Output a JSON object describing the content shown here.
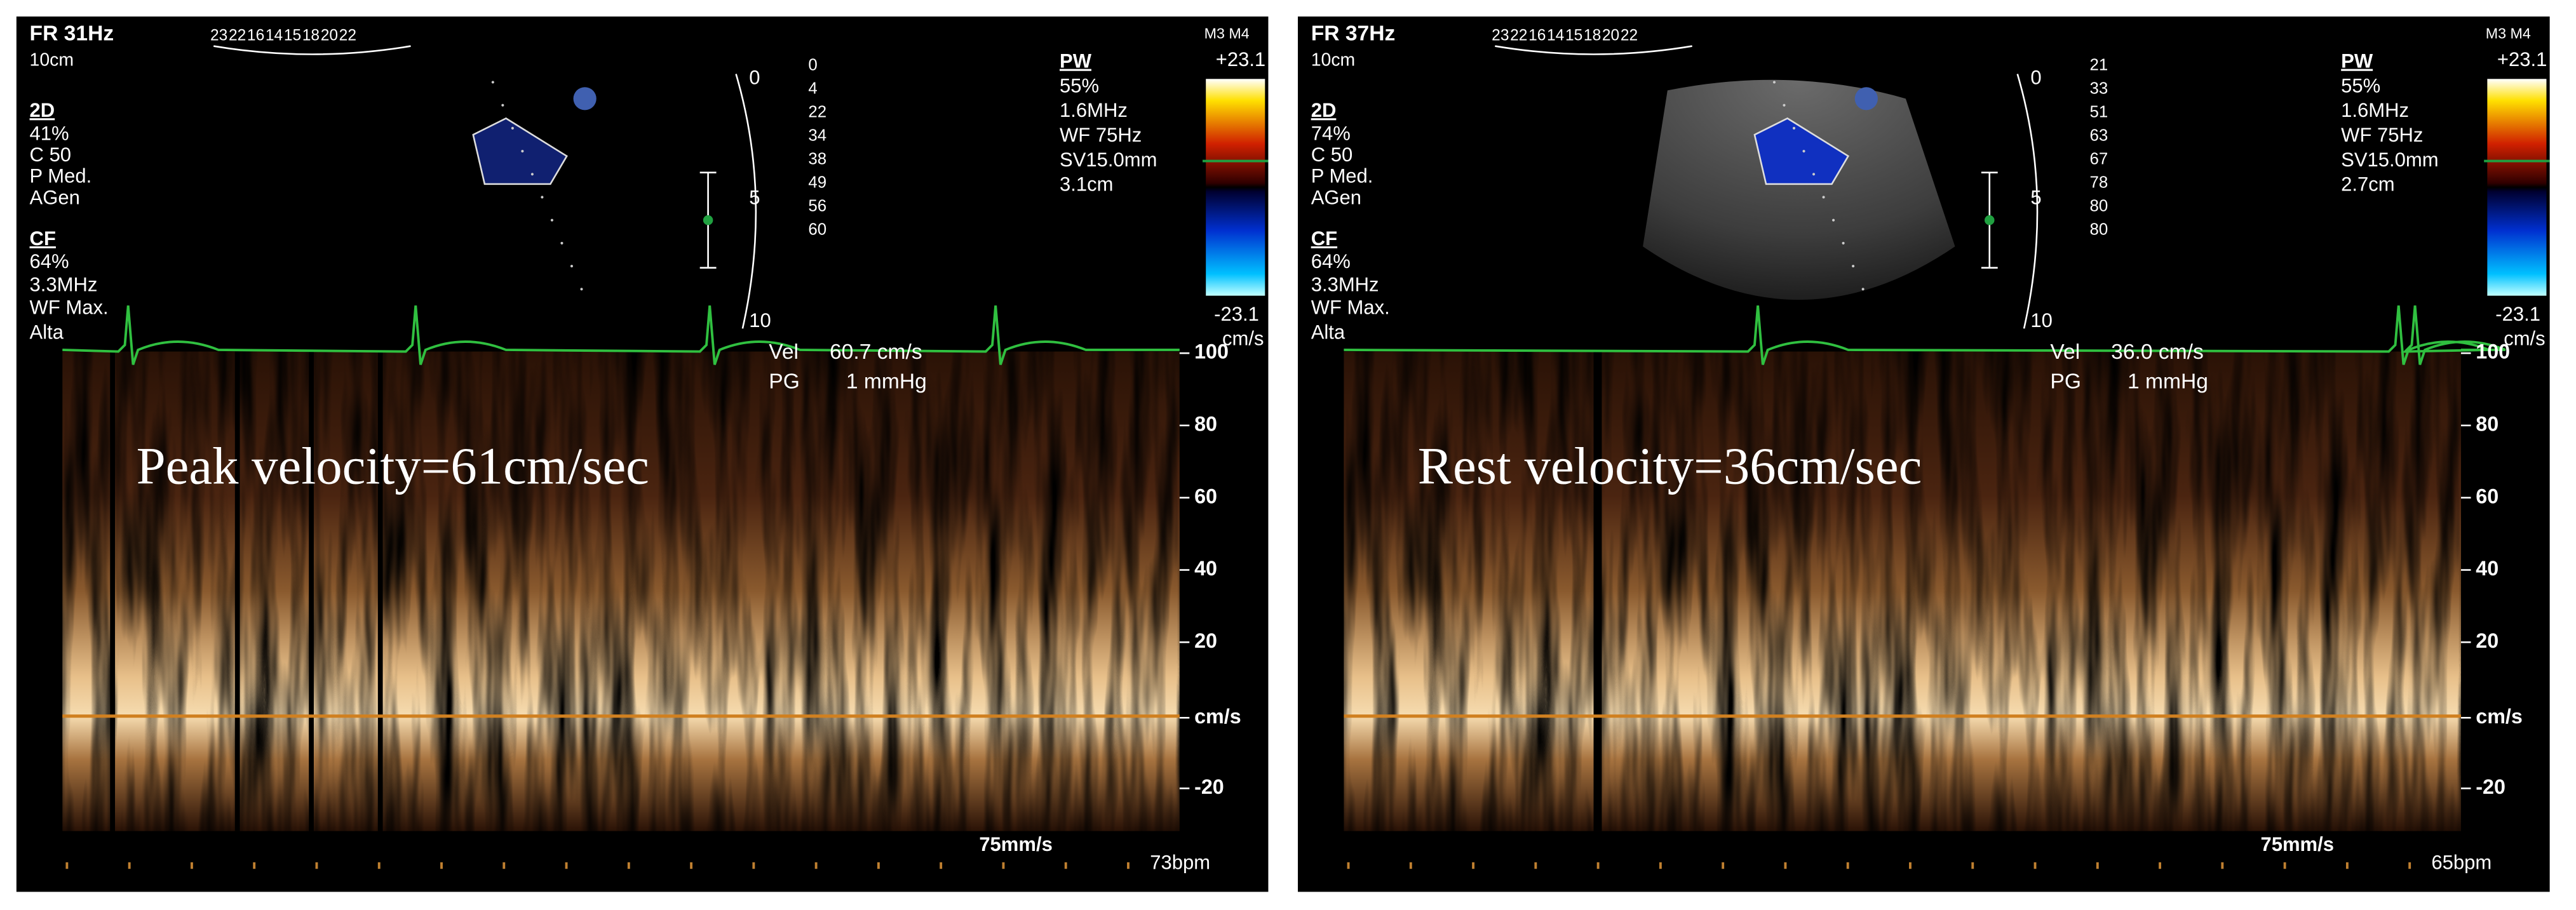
{
  "panels": [
    {
      "header": {
        "frame_rate": "FR 31Hz",
        "depth": "10cm",
        "codes": "23 22 16 14 15 18 20 22",
        "mode_codes": "M3 M4"
      },
      "left_params": [
        "2D",
        "41%",
        "C 50",
        "P Med.",
        "AGen",
        "CF",
        "64%",
        "3.3MHz",
        "WF Max.",
        "Alta"
      ],
      "depth_scale": [
        "0",
        "5",
        "10"
      ],
      "depth_values": [
        "0",
        "4",
        "22",
        "34",
        "38",
        "49",
        "56",
        "60"
      ],
      "pw_params": [
        "PW",
        "55%",
        "1.6MHz",
        "WF  75Hz",
        "SV15.0mm",
        "3.1cm"
      ],
      "color_scale": [
        "+23.1",
        "-23.1",
        "cm/s"
      ],
      "measurements": [
        "Vel",
        "60.7 cm/s",
        "PG",
        "1 mmHg"
      ],
      "velocity_axis": [
        "100",
        "80",
        "60",
        "40",
        "20",
        "cm/s",
        "-20"
      ],
      "annotation": "Peak velocity=61cm/sec",
      "sweep": "75mm/s",
      "heart_rate": "73bpm"
    },
    {
      "header": {
        "frame_rate": "FR 37Hz",
        "depth": "10cm",
        "codes": "23 22 16 14 15 18 20 22",
        "mode_codes": "M3 M4"
      },
      "left_params": [
        "2D",
        "74%",
        "C 50",
        "P Med.",
        "AGen",
        "CF",
        "64%",
        "3.3MHz",
        "WF Max.",
        "Alta"
      ],
      "depth_scale": [
        "0",
        "5",
        "10"
      ],
      "depth_values": [
        "21",
        "33",
        "51",
        "63",
        "67",
        "78",
        "80",
        "80"
      ],
      "pw_params": [
        "PW",
        "55%",
        "1.6MHz",
        "WF  75Hz",
        "SV15.0mm",
        "2.7cm"
      ],
      "color_scale": [
        "+23.1",
        "-23.1",
        "cm/s"
      ],
      "measurements": [
        "Vel",
        "36.0 cm/s",
        "PG",
        "1 mmHg"
      ],
      "velocity_axis": [
        "100",
        "80",
        "60",
        "40",
        "20",
        "cm/s",
        "-20"
      ],
      "annotation": "Rest velocity=36cm/sec",
      "sweep": "75mm/s",
      "heart_rate": "65bpm"
    }
  ]
}
